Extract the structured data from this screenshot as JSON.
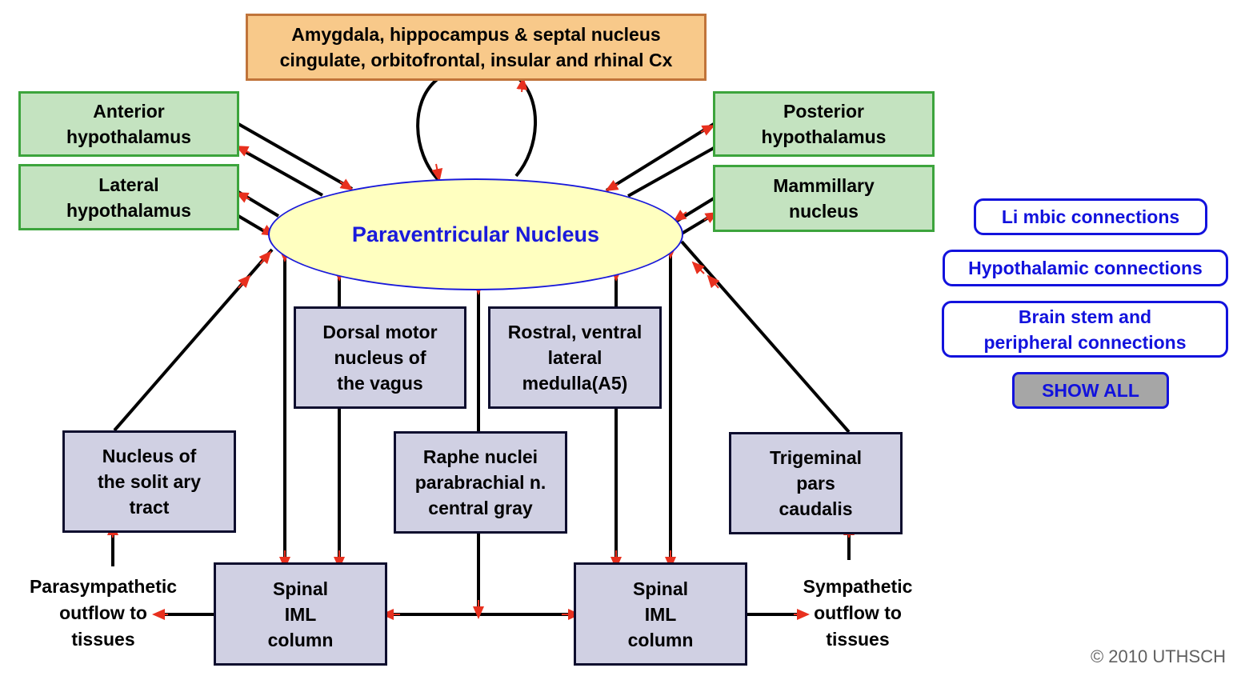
{
  "top_box": {
    "text": "Amygdala, hippocampus & septal nucleus\ncingulate, orbitofrontal, insular and rhinal Cx"
  },
  "left_boxes": {
    "anterior": "Anterior\nhypothalamus",
    "lateral": "Lateral\nhypothalamus"
  },
  "right_boxes": {
    "posterior": "Posterior\nhypothalamus",
    "mammillary": "Mammillary\nnucleus"
  },
  "center": {
    "label": "Paraventricular Nucleus"
  },
  "middle_boxes": {
    "dorsal_motor": "Dorsal motor\nnucleus of\nthe vagus",
    "rostral_ventral": "Rostral, ventral\nlateral\nmedulla(A5)",
    "solitary": "Nucleus of\nthe solit ary\ntract",
    "raphe": "Raphe nuclei\nparabrachial n.\ncentral gray",
    "trigeminal": "Trigeminal\npars\ncaudalis"
  },
  "spinal_boxes": {
    "left": "Spinal\nIML\ncolumn",
    "right": "Spinal\nIML\ncolumn"
  },
  "outflow": {
    "parasympathetic": "Parasympathetic\noutflow to\ntissues",
    "sympathetic": "Sympathetic\noutflow to\ntissues"
  },
  "nav": {
    "limbic": "Li mbic connections",
    "hypothalamic": "Hypothalamic connections",
    "brainstem": "Brain stem and\nperipheral connections",
    "show_all": "SHOW ALL"
  },
  "colors": {
    "line": "#000000",
    "arrow": "#e8301e",
    "nucleus_fill": "#ffffc0",
    "nucleus_text": "#1a1adb",
    "green_fill": "#c4e3c0",
    "orange_fill": "#f8c98a",
    "blue_box_fill": "#d0d0e3"
  },
  "copyright": "© 2010 UTHSCH"
}
